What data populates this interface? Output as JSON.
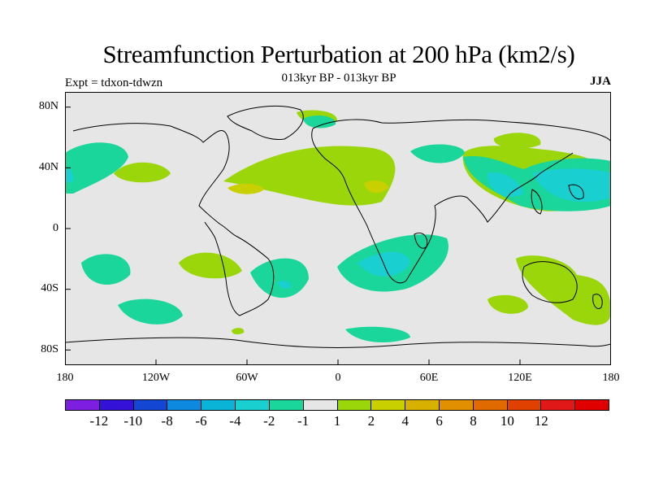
{
  "title": "Streamfunction Perturbation at 200 hPa (km2/s)",
  "subtitle": "013kyr BP - 013kyr BP",
  "experiment_label": "Expt = tdxon-tdwzn",
  "season": "JJA",
  "map": {
    "projection": "cylindrical-equidistant",
    "lon_range": [
      -180,
      180
    ],
    "lat_range": [
      -90,
      90
    ],
    "background_color": "#e6e6e6",
    "y_ticks": [
      "80N",
      "40N",
      "0",
      "40S",
      "80S"
    ],
    "x_ticks": [
      "180",
      "120W",
      "60W",
      "0",
      "60E",
      "120E",
      "180"
    ]
  },
  "colorbar": {
    "colors": [
      "#7d1fe0",
      "#3311d6",
      "#1446d4",
      "#0d8ae0",
      "#0ab4d6",
      "#1acfd0",
      "#1ad69a",
      "#e6e6e6",
      "#9ad60a",
      "#c8d000",
      "#d8b000",
      "#e09000",
      "#e06a00",
      "#e04000",
      "#e01818",
      "#e00000"
    ],
    "labels": [
      "-12",
      "-10",
      "-8",
      "-6",
      "-4",
      "-2",
      "-1",
      "1",
      "2",
      "4",
      "6",
      "8",
      "10",
      "12"
    ]
  }
}
